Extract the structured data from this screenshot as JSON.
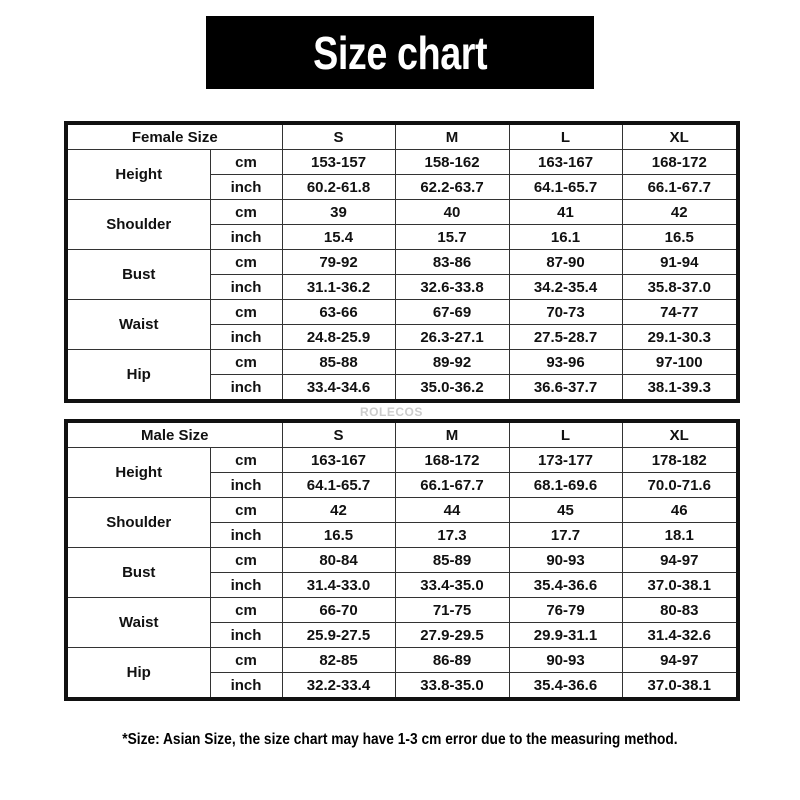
{
  "title": "Size chart",
  "watermark": "ROLECOS",
  "sizes": [
    "S",
    "M",
    "L",
    "XL"
  ],
  "units": [
    "cm",
    "inch"
  ],
  "female": {
    "header": "Female Size",
    "rows": [
      {
        "label": "Height",
        "cm": [
          "153-157",
          "158-162",
          "163-167",
          "168-172"
        ],
        "inch": [
          "60.2-61.8",
          "62.2-63.7",
          "64.1-65.7",
          "66.1-67.7"
        ]
      },
      {
        "label": "Shoulder",
        "cm": [
          "39",
          "40",
          "41",
          "42"
        ],
        "inch": [
          "15.4",
          "15.7",
          "16.1",
          "16.5"
        ]
      },
      {
        "label": "Bust",
        "cm": [
          "79-92",
          "83-86",
          "87-90",
          "91-94"
        ],
        "inch": [
          "31.1-36.2",
          "32.6-33.8",
          "34.2-35.4",
          "35.8-37.0"
        ]
      },
      {
        "label": "Waist",
        "cm": [
          "63-66",
          "67-69",
          "70-73",
          "74-77"
        ],
        "inch": [
          "24.8-25.9",
          "26.3-27.1",
          "27.5-28.7",
          "29.1-30.3"
        ]
      },
      {
        "label": "Hip",
        "cm": [
          "85-88",
          "89-92",
          "93-96",
          "97-100"
        ],
        "inch": [
          "33.4-34.6",
          "35.0-36.2",
          "36.6-37.7",
          "38.1-39.3"
        ]
      }
    ]
  },
  "male": {
    "header": "Male Size",
    "rows": [
      {
        "label": "Height",
        "cm": [
          "163-167",
          "168-172",
          "173-177",
          "178-182"
        ],
        "inch": [
          "64.1-65.7",
          "66.1-67.7",
          "68.1-69.6",
          "70.0-71.6"
        ]
      },
      {
        "label": "Shoulder",
        "cm": [
          "42",
          "44",
          "45",
          "46"
        ],
        "inch": [
          "16.5",
          "17.3",
          "17.7",
          "18.1"
        ]
      },
      {
        "label": "Bust",
        "cm": [
          "80-84",
          "85-89",
          "90-93",
          "94-97"
        ],
        "inch": [
          "31.4-33.0",
          "33.4-35.0",
          "35.4-36.6",
          "37.0-38.1"
        ]
      },
      {
        "label": "Waist",
        "cm": [
          "66-70",
          "71-75",
          "76-79",
          "80-83"
        ],
        "inch": [
          "25.9-27.5",
          "27.9-29.5",
          "29.9-31.1",
          "31.4-32.6"
        ]
      },
      {
        "label": "Hip",
        "cm": [
          "82-85",
          "86-89",
          "90-93",
          "94-97"
        ],
        "inch": [
          "32.2-33.4",
          "33.8-35.0",
          "35.4-36.6",
          "37.0-38.1"
        ]
      }
    ]
  },
  "footnote": "*Size: Asian Size, the size chart may have 1-3 cm error due to the measuring method."
}
